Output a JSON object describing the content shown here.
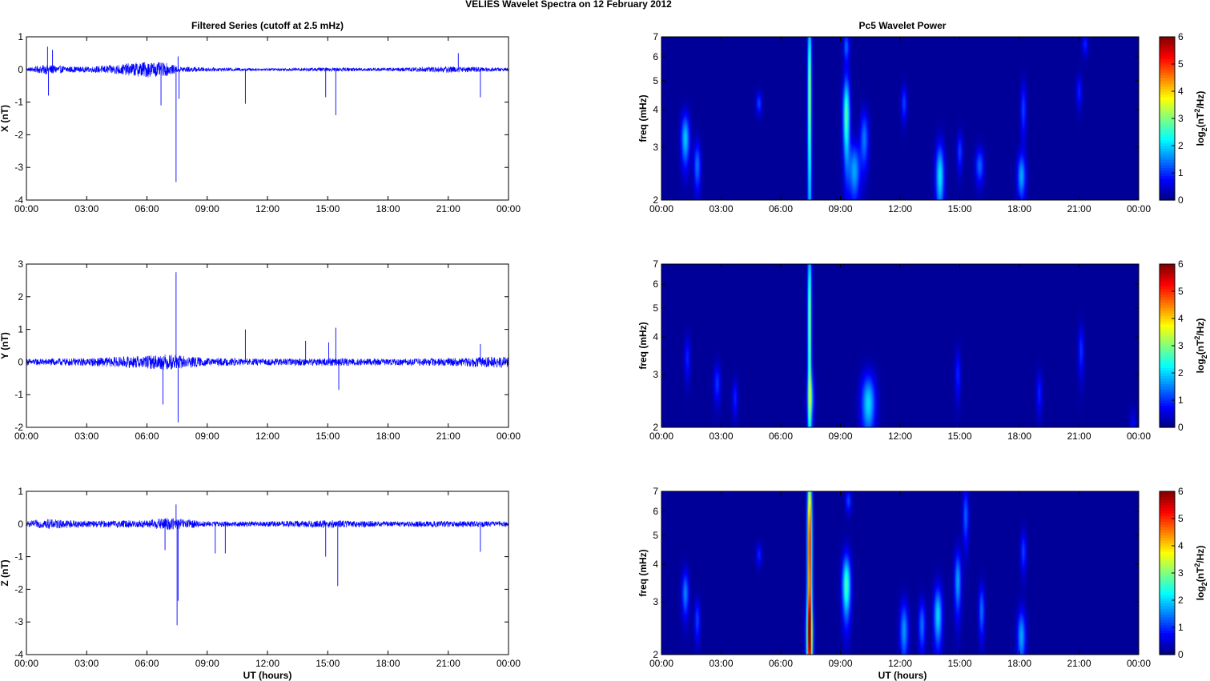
{
  "figure": {
    "title": "VELIES Wavelet Spectra on 12 February  2012",
    "left_title": "Filtered Series (cutoff at 2.5 mHz)",
    "right_title": "Pc5 Wavelet Power",
    "xlabel": "UT (hours)",
    "colormap": "jet",
    "trace_color": "#0000ff"
  },
  "chart_data": [
    {
      "type": "line",
      "name": "X",
      "ylabel": "X (nT)",
      "xlim": [
        0,
        24
      ],
      "xtick_labels": [
        "00:00",
        "03:00",
        "06:00",
        "09:00",
        "12:00",
        "15:00",
        "18:00",
        "21:00",
        "00:00"
      ],
      "ylim": [
        -4,
        1
      ],
      "yticks": [
        1,
        0,
        -1,
        -2,
        -3,
        -4
      ],
      "noise_envelope": [
        [
          0,
          0.05
        ],
        [
          1,
          0.15
        ],
        [
          2,
          0.1
        ],
        [
          3,
          0.08
        ],
        [
          4.5,
          0.15
        ],
        [
          6,
          0.25
        ],
        [
          7,
          0.2
        ],
        [
          7.5,
          0.1
        ],
        [
          9,
          0.06
        ],
        [
          12,
          0.04
        ],
        [
          15,
          0.06
        ],
        [
          18,
          0.05
        ],
        [
          21,
          0.1
        ],
        [
          24,
          0.05
        ]
      ],
      "spikes": [
        [
          1.05,
          0.7
        ],
        [
          1.1,
          -0.8
        ],
        [
          1.3,
          0.6
        ],
        [
          6.7,
          -1.1
        ],
        [
          7.45,
          -3.45
        ],
        [
          7.55,
          0.4
        ],
        [
          7.6,
          -0.9
        ],
        [
          10.9,
          -1.05
        ],
        [
          14.9,
          -0.85
        ],
        [
          15.4,
          -1.4
        ],
        [
          21.5,
          0.5
        ],
        [
          22.6,
          -0.85
        ]
      ]
    },
    {
      "type": "line",
      "name": "Y",
      "ylabel": "Y (nT)",
      "xlim": [
        0,
        24
      ],
      "xtick_labels": [
        "00:00",
        "03:00",
        "06:00",
        "09:00",
        "12:00",
        "15:00",
        "18:00",
        "21:00",
        "00:00"
      ],
      "ylim": [
        -2,
        3
      ],
      "yticks": [
        3,
        2,
        1,
        0,
        -1,
        -2
      ],
      "noise_envelope": [
        [
          0,
          0.1
        ],
        [
          3,
          0.12
        ],
        [
          6,
          0.2
        ],
        [
          7,
          0.25
        ],
        [
          9,
          0.12
        ],
        [
          12,
          0.1
        ],
        [
          15,
          0.12
        ],
        [
          18,
          0.1
        ],
        [
          21,
          0.12
        ],
        [
          24,
          0.18
        ]
      ],
      "spikes": [
        [
          6.8,
          -1.3
        ],
        [
          7.45,
          2.75
        ],
        [
          7.55,
          -1.85
        ],
        [
          10.9,
          1.0
        ],
        [
          13.9,
          0.65
        ],
        [
          15.05,
          0.6
        ],
        [
          15.4,
          1.05
        ],
        [
          15.55,
          -0.85
        ],
        [
          22.6,
          0.55
        ]
      ]
    },
    {
      "type": "line",
      "name": "Z",
      "ylabel": "Z (nT)",
      "xlim": [
        0,
        24
      ],
      "xtick_labels": [
        "00:00",
        "03:00",
        "06:00",
        "09:00",
        "12:00",
        "15:00",
        "18:00",
        "21:00",
        "00:00"
      ],
      "ylim": [
        -4,
        1
      ],
      "yticks": [
        1,
        0,
        -1,
        -2,
        -3,
        -4
      ],
      "noise_envelope": [
        [
          0,
          0.08
        ],
        [
          1,
          0.15
        ],
        [
          3,
          0.1
        ],
        [
          6,
          0.12
        ],
        [
          7,
          0.2
        ],
        [
          9,
          0.08
        ],
        [
          12,
          0.08
        ],
        [
          15,
          0.12
        ],
        [
          18,
          0.08
        ],
        [
          21,
          0.1
        ],
        [
          24,
          0.08
        ]
      ],
      "spikes": [
        [
          6.9,
          -0.8
        ],
        [
          7.45,
          0.6
        ],
        [
          7.5,
          -3.1
        ],
        [
          7.55,
          -2.35
        ],
        [
          9.4,
          -0.9
        ],
        [
          9.9,
          -0.9
        ],
        [
          14.9,
          -1.0
        ],
        [
          15.5,
          -1.9
        ],
        [
          22.6,
          -0.85
        ]
      ]
    },
    {
      "type": "heatmap",
      "name": "X",
      "ylabel": "freq (mHz)",
      "clabel": "log2(nT^2/Hz)",
      "xlim": [
        0,
        24
      ],
      "xtick_labels": [
        "00:00",
        "03:00",
        "06:00",
        "09:00",
        "12:00",
        "15:00",
        "18:00",
        "21:00",
        "00:00"
      ],
      "ylim": [
        2,
        7
      ],
      "yscale": "log",
      "yticks": [
        2,
        3,
        4,
        5,
        6,
        7
      ],
      "clim": [
        0,
        6
      ],
      "cticks": [
        0,
        1,
        2,
        3,
        4,
        5,
        6
      ],
      "blobs": [
        [
          1.2,
          3.2,
          0.15,
          0.45,
          1.8
        ],
        [
          1.8,
          2.6,
          0.12,
          0.35,
          1.3
        ],
        [
          4.9,
          4.2,
          0.1,
          0.25,
          1.0
        ],
        [
          7.45,
          4.5,
          0.07,
          2.5,
          3.1
        ],
        [
          9.3,
          3.8,
          0.12,
          0.9,
          2.6
        ],
        [
          9.3,
          6.5,
          0.1,
          0.5,
          1.2
        ],
        [
          9.7,
          2.5,
          0.2,
          0.4,
          1.6
        ],
        [
          10.2,
          3.2,
          0.15,
          0.5,
          1.3
        ],
        [
          12.2,
          4.2,
          0.1,
          0.4,
          1.0
        ],
        [
          14.0,
          2.4,
          0.15,
          0.45,
          2.0
        ],
        [
          15.0,
          2.9,
          0.1,
          0.3,
          1.0
        ],
        [
          16.0,
          2.6,
          0.15,
          0.25,
          1.2
        ],
        [
          18.1,
          2.4,
          0.15,
          0.3,
          1.6
        ],
        [
          18.2,
          4.0,
          0.1,
          0.6,
          1.0
        ],
        [
          21.0,
          4.6,
          0.1,
          0.4,
          0.8
        ],
        [
          21.3,
          6.6,
          0.1,
          0.4,
          0.8
        ]
      ]
    },
    {
      "type": "heatmap",
      "name": "Y",
      "ylabel": "freq (mHz)",
      "clabel": "log2(nT^2/Hz)",
      "xlim": [
        0,
        24
      ],
      "xtick_labels": [
        "00:00",
        "03:00",
        "06:00",
        "09:00",
        "12:00",
        "15:00",
        "18:00",
        "21:00",
        "00:00"
      ],
      "ylim": [
        2,
        7
      ],
      "yscale": "log",
      "yticks": [
        2,
        3,
        4,
        5,
        6,
        7
      ],
      "clim": [
        0,
        6
      ],
      "cticks": [
        0,
        1,
        2,
        3,
        4,
        5,
        6
      ],
      "blobs": [
        [
          7.45,
          4.5,
          0.07,
          2.5,
          3.0
        ],
        [
          7.5,
          2.5,
          0.12,
          0.35,
          1.5
        ],
        [
          10.4,
          2.4,
          0.25,
          0.4,
          1.9
        ],
        [
          2.8,
          2.8,
          0.12,
          0.3,
          0.9
        ],
        [
          3.7,
          2.5,
          0.1,
          0.25,
          0.8
        ],
        [
          1.3,
          3.4,
          0.1,
          0.4,
          0.8
        ],
        [
          14.9,
          3.0,
          0.1,
          0.4,
          0.8
        ],
        [
          19.0,
          2.6,
          0.1,
          0.3,
          0.8
        ],
        [
          21.1,
          3.6,
          0.1,
          0.5,
          0.9
        ],
        [
          23.7,
          2.0,
          0.1,
          0.2,
          0.6
        ]
      ]
    },
    {
      "type": "heatmap",
      "name": "Z",
      "ylabel": "freq (mHz)",
      "clabel": "log2(nT^2/Hz)",
      "xlim": [
        0,
        24
      ],
      "xtick_labels": [
        "00:00",
        "03:00",
        "06:00",
        "09:00",
        "12:00",
        "15:00",
        "18:00",
        "21:00",
        "00:00"
      ],
      "ylim": [
        2,
        7
      ],
      "yscale": "log",
      "yticks": [
        2,
        3,
        4,
        5,
        6,
        7
      ],
      "clim": [
        0,
        6
      ],
      "cticks": [
        0,
        1,
        2,
        3,
        4,
        5,
        6
      ],
      "blobs": [
        [
          7.45,
          4.5,
          0.08,
          2.5,
          5.2
        ],
        [
          7.45,
          2.3,
          0.12,
          0.5,
          3.0
        ],
        [
          9.3,
          3.4,
          0.15,
          0.6,
          2.5
        ],
        [
          9.4,
          6.5,
          0.1,
          0.4,
          1.0
        ],
        [
          1.2,
          3.2,
          0.12,
          0.4,
          1.4
        ],
        [
          1.8,
          2.6,
          0.1,
          0.3,
          1.0
        ],
        [
          4.9,
          4.3,
          0.1,
          0.25,
          0.8
        ],
        [
          12.2,
          2.4,
          0.15,
          0.4,
          1.5
        ],
        [
          13.1,
          2.5,
          0.12,
          0.35,
          1.3
        ],
        [
          13.9,
          2.7,
          0.15,
          0.45,
          1.9
        ],
        [
          14.9,
          3.5,
          0.12,
          0.6,
          1.6
        ],
        [
          15.3,
          5.8,
          0.1,
          0.9,
          1.2
        ],
        [
          16.1,
          2.8,
          0.1,
          0.4,
          1.3
        ],
        [
          18.1,
          2.3,
          0.15,
          0.35,
          1.6
        ],
        [
          18.2,
          4.4,
          0.1,
          0.5,
          1.0
        ]
      ]
    }
  ]
}
